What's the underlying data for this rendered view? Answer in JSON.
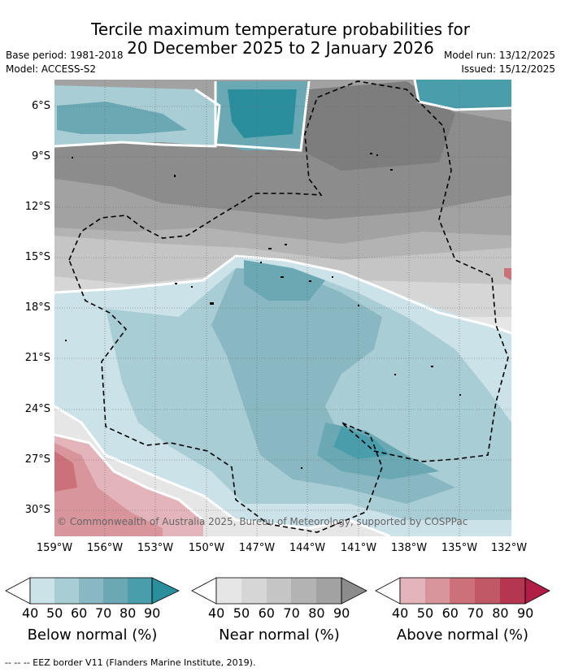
{
  "header": {
    "title_line1": "Tercile maximum temperature probabilities for",
    "title_line2": "20 December 2025 to 2 January 2026",
    "base_period": "Base period: 1981-2018",
    "model": "Model: ACCESS-S2",
    "model_run": "Model run: 13/12/2025",
    "issued": "Issued: 15/12/2025"
  },
  "map": {
    "copyright": "© Commonwealth of Australia 2025, Bureau of Meteorology, supported by COSPPac",
    "eez_label": "--  --  -- EEZ border V11 (Flanders Marine Institute, 2019)."
  },
  "chart_data": {
    "type": "heatmap",
    "title": "Tercile maximum temperature probabilities for 20 December 2025 to 2 January 2026",
    "x_ticks": [
      "159°W",
      "156°W",
      "153°W",
      "150°W",
      "147°W",
      "144°W",
      "141°W",
      "138°W",
      "135°W",
      "132°W"
    ],
    "y_ticks": [
      "6°S",
      "9°S",
      "12°S",
      "15°S",
      "18°S",
      "21°S",
      "24°S",
      "27°S",
      "30°S"
    ],
    "lon_range": [
      -159,
      -132
    ],
    "lat_range": [
      -31.5,
      -4.5
    ],
    "colorbars": [
      {
        "name": "Below normal (%)",
        "levels": [
          "40",
          "50",
          "60",
          "70",
          "80",
          "90"
        ],
        "colors": [
          "#cae2e8",
          "#a8cdd4",
          "#89b8c2",
          "#6aa9b4",
          "#4a9eab",
          "#2a8e9c"
        ]
      },
      {
        "name": "Near normal (%)",
        "levels": [
          "40",
          "50",
          "60",
          "70",
          "80",
          "90"
        ],
        "colors": [
          "#e6e6e6",
          "#d6d6d6",
          "#c5c5c5",
          "#b3b3b3",
          "#a2a2a2",
          "#8c8c8c"
        ]
      },
      {
        "name": "Above normal (%)",
        "levels": [
          "40",
          "50",
          "60",
          "70",
          "80",
          "90"
        ],
        "colors": [
          "#e3b5bb",
          "#d8959c",
          "#cc7079",
          "#c05866",
          "#b53650",
          "#b01e45"
        ]
      }
    ],
    "regions_description_colors": {
      "dominant_north": "near normal 60-80%",
      "central_south": "below normal 40-80%",
      "southwest_corner": "above normal 50-70%"
    }
  }
}
